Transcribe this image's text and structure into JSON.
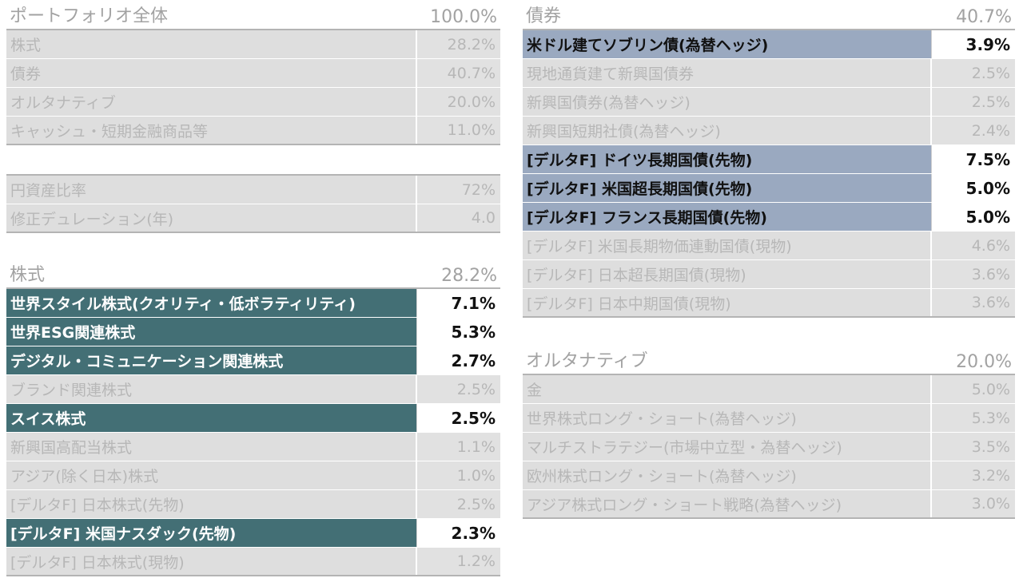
{
  "portfolio": {
    "title": "ポートフォリオ全体",
    "total": "100.0%",
    "rows": [
      {
        "name": "株式",
        "value": "28.2%"
      },
      {
        "name": "債券",
        "value": "40.7%"
      },
      {
        "name": "オルタナティブ",
        "value": "20.0%"
      },
      {
        "name": "キャッシュ・短期金融商品等",
        "value": "11.0%"
      }
    ]
  },
  "metrics": {
    "rows": [
      {
        "name": "円資産比率",
        "value": "72%"
      },
      {
        "name": "修正デュレーション(年)",
        "value": "4.0"
      }
    ]
  },
  "equity": {
    "title": "株式",
    "total": "28.2%",
    "rows": [
      {
        "name": "世界スタイル株式(クオリティ・低ボラティリティ)",
        "value": "7.1%",
        "highlight": true
      },
      {
        "name": "世界ESG関連株式",
        "value": "5.3%",
        "highlight": true
      },
      {
        "name": "デジタル・コミュニケーション関連株式",
        "value": "2.7%",
        "highlight": true
      },
      {
        "name": "ブランド関連株式",
        "value": "2.5%",
        "highlight": false
      },
      {
        "name": "スイス株式",
        "value": "2.5%",
        "highlight": true
      },
      {
        "name": "新興国高配当株式",
        "value": "1.1%",
        "highlight": false
      },
      {
        "name": "アジア(除く日本)株式",
        "value": "1.0%",
        "highlight": false
      },
      {
        "name": "[デルタF] 日本株式(先物)",
        "value": "2.5%",
        "highlight": false
      },
      {
        "name": "[デルタF] 米国ナスダック(先物)",
        "value": "2.3%",
        "highlight": true
      },
      {
        "name": "[デルタF] 日本株式(現物)",
        "value": "1.2%",
        "highlight": false
      }
    ]
  },
  "bonds": {
    "title": "債券",
    "total": "40.7%",
    "rows": [
      {
        "name": "米ドル建てソブリン債(為替ヘッジ)",
        "value": "3.9%",
        "highlight": true
      },
      {
        "name": "現地通貨建て新興国債券",
        "value": "2.5%",
        "highlight": false
      },
      {
        "name": "新興国債券(為替ヘッジ)",
        "value": "2.5%",
        "highlight": false
      },
      {
        "name": "新興国短期社債(為替ヘッジ)",
        "value": "2.4%",
        "highlight": false
      },
      {
        "name": "[デルタF] ドイツ長期国債(先物)",
        "value": "7.5%",
        "highlight": true
      },
      {
        "name": "[デルタF] 米国超長期国債(先物)",
        "value": "5.0%",
        "highlight": true
      },
      {
        "name": "[デルタF] フランス長期国債(先物)",
        "value": "5.0%",
        "highlight": true
      },
      {
        "name": "[デルタF] 米国長期物価連動国債(現物)",
        "value": "4.6%",
        "highlight": false
      },
      {
        "name": "[デルタF] 日本超長期国債(現物)",
        "value": "3.6%",
        "highlight": false
      },
      {
        "name": "[デルタF] 日本中期国債(現物)",
        "value": "3.6%",
        "highlight": false
      }
    ]
  },
  "alternatives": {
    "title": "オルタナティブ",
    "total": "20.0%",
    "rows": [
      {
        "name": "金",
        "value": "5.0%"
      },
      {
        "name": "世界株式ロング・ショート(為替ヘッジ)",
        "value": "5.3%"
      },
      {
        "name": "マルチストラテジー(市場中立型・為替ヘッジ)",
        "value": "3.5%"
      },
      {
        "name": "欧州株式ロング・ショート(為替ヘッジ)",
        "value": "3.2%"
      },
      {
        "name": "アジア株式ロング・ショート戦略(為替ヘッジ)",
        "value": "3.0%"
      }
    ]
  },
  "colors": {
    "equity_highlight": "#436f75",
    "bond_highlight": "#9aa9c0",
    "row_bg": "#dedede",
    "muted_text": "#b7b7b7"
  }
}
